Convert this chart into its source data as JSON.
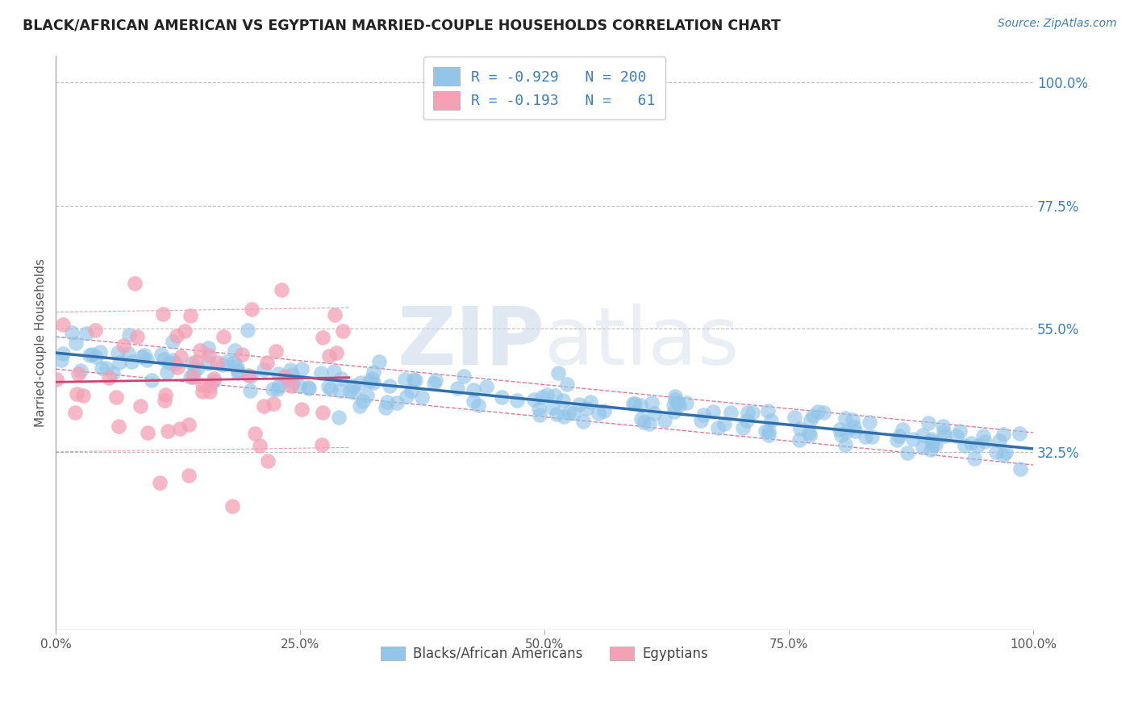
{
  "title": "BLACK/AFRICAN AMERICAN VS EGYPTIAN MARRIED-COUPLE HOUSEHOLDS CORRELATION CHART",
  "source": "Source: ZipAtlas.com",
  "ylabel": "Married-couple Households",
  "blue_color": "#92C5E8",
  "blue_line_color": "#2F6FAD",
  "blue_ci_color": "#B8D8F0",
  "pink_color": "#F4A0B5",
  "pink_line_color": "#D04070",
  "pink_ci_color": "#F8C8D4",
  "legend_R1": "-0.929",
  "legend_N1": "200",
  "legend_R2": "-0.193",
  "legend_N2": "61",
  "background_color": "#FFFFFF",
  "grid_color": "#BBBBBB",
  "title_color": "#222222",
  "right_tick_color": "#3A7EBF",
  "blue_R": -0.929,
  "blue_N": 200,
  "pink_R": -0.193,
  "pink_N": 61,
  "blue_seed": 42,
  "pink_seed": 7,
  "xlim": [
    0.0,
    1.0
  ],
  "ylim": [
    0.0,
    1.05
  ],
  "ytick_positions": [
    1.0,
    0.775,
    0.55,
    0.325
  ],
  "ytick_labels": [
    "100.0%",
    "77.5%",
    "55.0%",
    "32.5%"
  ],
  "xtick_positions": [
    0.0,
    0.25,
    0.5,
    0.75,
    1.0
  ],
  "xtick_labels": [
    "0.0%",
    "25.0%",
    "50.0%",
    "75.0%",
    "100.0%"
  ]
}
